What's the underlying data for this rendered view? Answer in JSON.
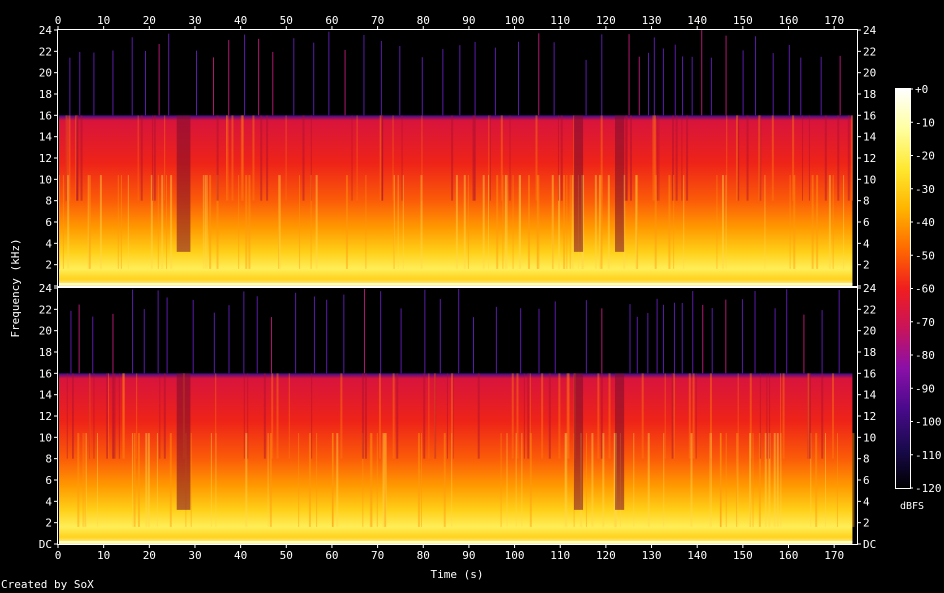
{
  "chart_data": {
    "type": "heatmap",
    "subtype": "spectrogram",
    "xlabel": "Time (s)",
    "ylabel": "Frequency (kHz)",
    "x_ticks": [
      0,
      10,
      20,
      30,
      40,
      50,
      60,
      70,
      80,
      90,
      100,
      110,
      120,
      130,
      140,
      150,
      160,
      170
    ],
    "xlim": [
      0,
      175
    ],
    "y_ticks": [
      "DC",
      "2",
      "4",
      "6",
      "8",
      "10",
      "12",
      "14",
      "16",
      "18",
      "20",
      "22",
      "24"
    ],
    "ylim": [
      0,
      24
    ],
    "channels": 2,
    "content_cutoff_khz": 16,
    "audio_end_s": 174,
    "low_energy_intervals_s": [
      [
        26,
        29
      ],
      [
        113,
        115
      ],
      [
        122,
        124
      ]
    ],
    "burst_spikes_s": [
      3,
      5,
      8,
      12,
      16,
      19,
      22,
      24,
      30,
      34,
      37.5,
      41,
      44,
      47,
      52,
      56,
      59,
      63,
      67,
      71,
      75,
      80,
      84,
      88,
      91,
      96,
      101,
      105,
      109,
      116,
      119,
      125,
      127,
      129,
      131,
      133,
      135,
      137,
      139,
      141,
      143,
      146,
      150,
      153,
      157,
      160,
      163,
      167,
      171
    ],
    "colorbar": {
      "label": "dBFS",
      "ticks": [
        "+0",
        "-10",
        "-20",
        "-30",
        "-40",
        "-50",
        "-60",
        "-70",
        "-80",
        "-90",
        "-100",
        "-110",
        "-120"
      ],
      "range": [
        -120,
        0
      ],
      "colors": [
        "#000000",
        "#1a0a4e",
        "#4a0a8c",
        "#8a10a8",
        "#c8145a",
        "#f01e1e",
        "#ff6a00",
        "#ffb400",
        "#ffe830",
        "#ffffa0",
        "#ffffff"
      ]
    }
  },
  "footer": {
    "credit": "Created by SoX"
  }
}
